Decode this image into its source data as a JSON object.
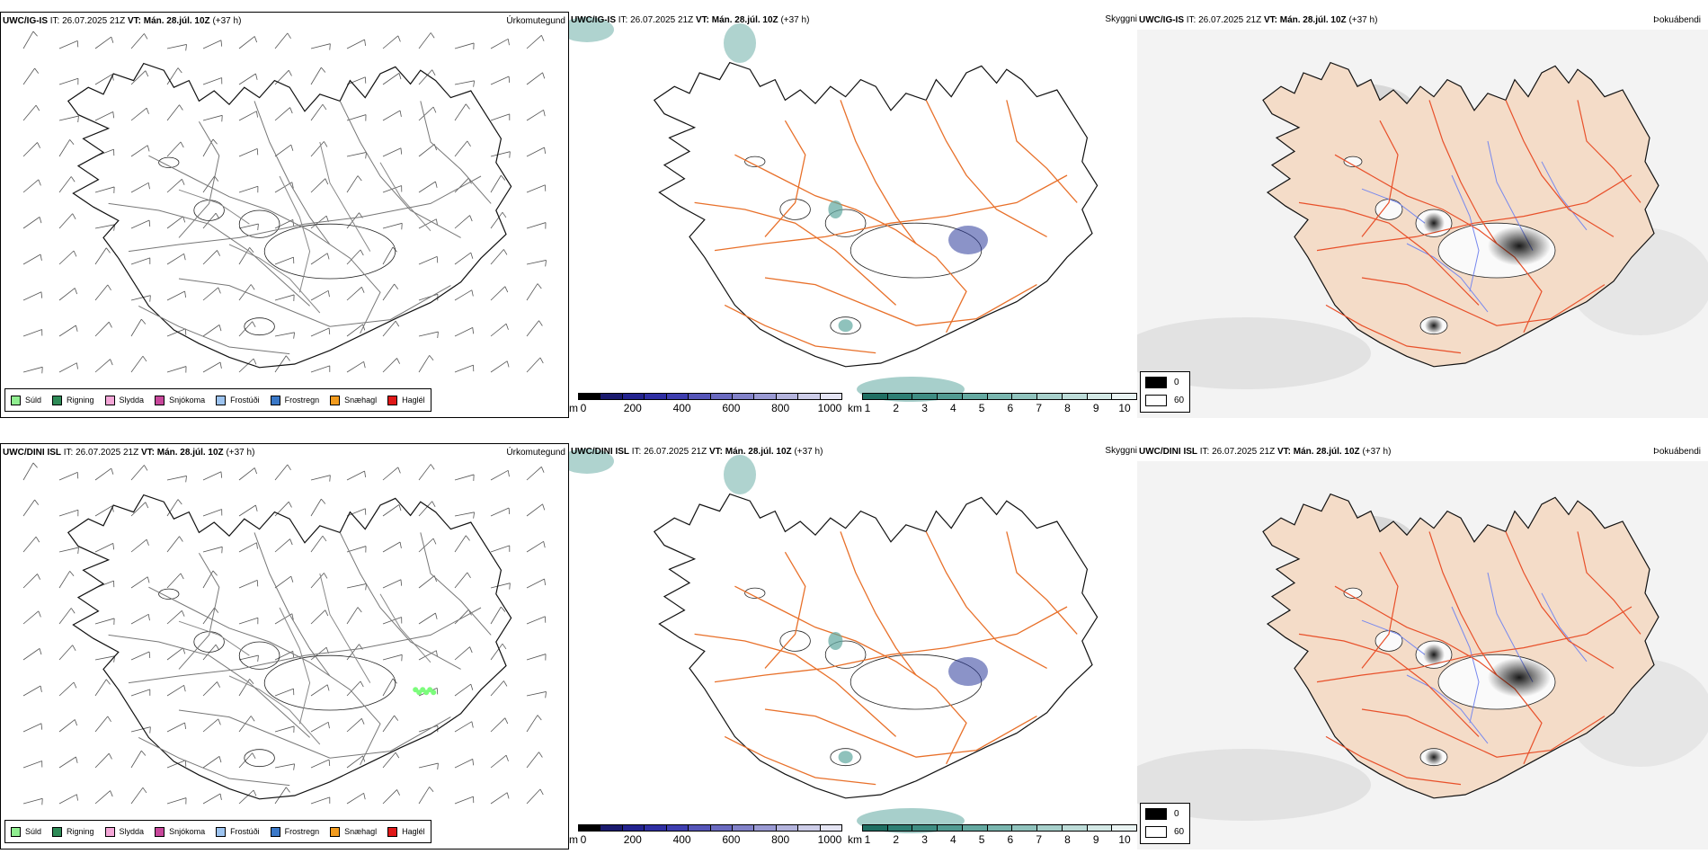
{
  "rows": [
    {
      "model": "UWC/IG-IS",
      "it_label": "IT:",
      "it_value": "26.07.2025 21Z",
      "vt_label": "VT:",
      "vt_value": "Mán. 28.júl. 10Z",
      "lead": "(+37 h)",
      "panels": {
        "precip": {
          "type_label": "Úrkomutegund"
        },
        "vis": {
          "type_label": "Skyggni"
        },
        "fog": {
          "type_label": "Þokuábendi"
        }
      }
    },
    {
      "model": "UWC/DINI ISL",
      "it_label": "IT:",
      "it_value": "26.07.2025 21Z",
      "vt_label": "VT:",
      "vt_value": "Mán. 28.júl. 10Z",
      "lead": "(+37 h)",
      "panels": {
        "precip": {
          "type_label": "Úrkomutegund"
        },
        "vis": {
          "type_label": "Skyggni"
        },
        "fog": {
          "type_label": "Þokuábendi"
        }
      }
    }
  ],
  "precip_legend": [
    {
      "label": "Súld",
      "color": "#90ee90"
    },
    {
      "label": "Rigning",
      "color": "#2e8b57"
    },
    {
      "label": "Slydda",
      "color": "#f4a6d7"
    },
    {
      "label": "Snjókoma",
      "color": "#c8479b"
    },
    {
      "label": "Frostúði",
      "color": "#9cc3ef"
    },
    {
      "label": "Frostregn",
      "color": "#3a78c8"
    },
    {
      "label": "Snæhagl",
      "color": "#f29b1d"
    },
    {
      "label": "Haglél",
      "color": "#e01818"
    }
  ],
  "elevation_bar": {
    "unit": "m",
    "ticks": [
      "0",
      "200",
      "400",
      "600",
      "800",
      "1000"
    ],
    "colors": [
      "#000000",
      "#1a1a6e",
      "#23238f",
      "#2f2fa3",
      "#3e3eb0",
      "#5555b8",
      "#6a6ac0",
      "#8282c9",
      "#9a9ad3",
      "#b4b4dd",
      "#cdcde8",
      "#e4e4f3"
    ]
  },
  "visibility_bar": {
    "unit": "km",
    "ticks": [
      "1",
      "2",
      "3",
      "4",
      "5",
      "6",
      "7",
      "8",
      "9",
      "10"
    ],
    "colors": [
      "#1f6f63",
      "#2d7f74",
      "#3e8d83",
      "#519b92",
      "#65a9a1",
      "#7ab6af",
      "#90c3bd",
      "#a7d0cb",
      "#bddcd8",
      "#d3e8e5",
      "#e9f3f2"
    ]
  },
  "fog_legend": [
    {
      "label": "0",
      "color": "#000000"
    },
    {
      "label": "60",
      "color": "#ffffff"
    }
  ],
  "colors": {
    "land": "#f4dcc8",
    "roads": "#e8702a",
    "roads_fog": "#e8502a",
    "rivers": "#7788ee",
    "vis_shade": "#5fa8a0",
    "drizzle": "#7cfc7c"
  }
}
